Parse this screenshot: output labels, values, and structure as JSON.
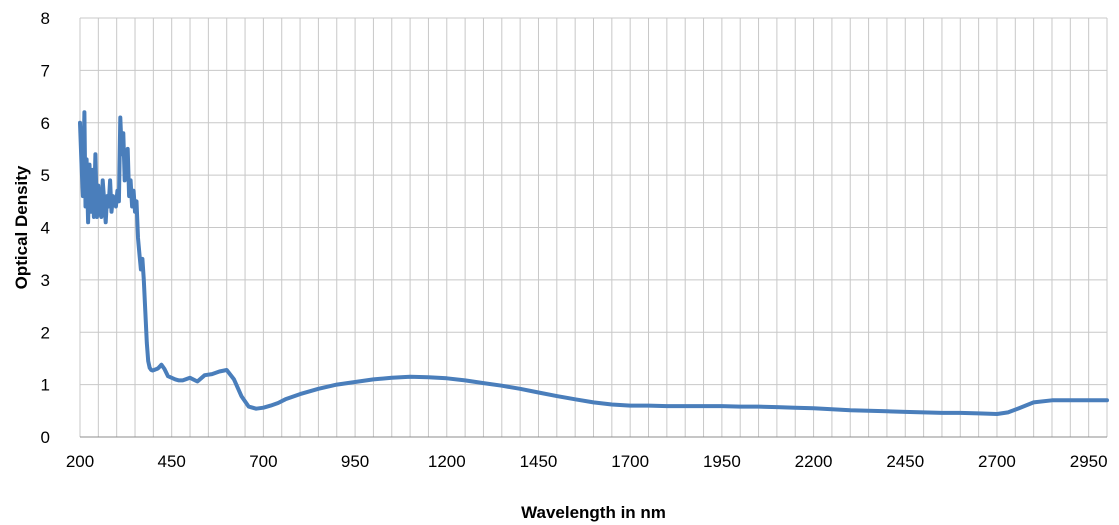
{
  "chart_data": {
    "type": "line",
    "title": "",
    "xlabel": "Wavelength in nm",
    "ylabel": "Optical Density",
    "xlim": [
      200,
      3000
    ],
    "ylim": [
      0,
      8
    ],
    "x_ticks": [
      200,
      450,
      700,
      950,
      1200,
      1450,
      1700,
      1950,
      2200,
      2450,
      2700,
      2950
    ],
    "y_ticks": [
      0,
      1,
      2,
      3,
      4,
      5,
      6,
      7,
      8
    ],
    "grid": true,
    "legend": "none",
    "series_color": "#4a7ebb",
    "series": [
      {
        "x": [
          200,
          204,
          208,
          212,
          215,
          218,
          222,
          226,
          230,
          234,
          238,
          242,
          246,
          250,
          254,
          258,
          262,
          266,
          270,
          274,
          278,
          282,
          286,
          290,
          294,
          298,
          302,
          306,
          310,
          314,
          318,
          322,
          326,
          330,
          334,
          338,
          342,
          346,
          350,
          354,
          358,
          362,
          366,
          370,
          374,
          378,
          382,
          386,
          390,
          394,
          398,
          402,
          406,
          410,
          414,
          418,
          422,
          430,
          440,
          450,
          460,
          470,
          480,
          500,
          520,
          540,
          560,
          580,
          600,
          620,
          640,
          660,
          680,
          700,
          720,
          740,
          760,
          800,
          850,
          900,
          950,
          1000,
          1050,
          1100,
          1150,
          1200,
          1250,
          1300,
          1350,
          1400,
          1450,
          1500,
          1550,
          1600,
          1650,
          1700,
          1750,
          1800,
          1850,
          1900,
          1950,
          2000,
          2050,
          2100,
          2150,
          2200,
          2250,
          2300,
          2350,
          2400,
          2450,
          2500,
          2550,
          2600,
          2650,
          2700,
          2730,
          2760,
          2800,
          2850,
          2900,
          2950,
          3000
        ],
        "values": [
          6.0,
          5.2,
          4.6,
          6.2,
          4.4,
          5.3,
          4.1,
          5.2,
          4.3,
          5.1,
          4.2,
          5.4,
          4.2,
          4.8,
          4.3,
          4.2,
          4.9,
          4.5,
          4.1,
          4.6,
          4.4,
          4.9,
          4.3,
          4.6,
          4.5,
          4.4,
          4.7,
          4.5,
          6.1,
          5.4,
          5.8,
          4.9,
          5.2,
          5.5,
          4.6,
          4.9,
          4.4,
          4.7,
          4.3,
          4.5,
          3.8,
          3.5,
          3.2,
          3.4,
          3.0,
          2.4,
          1.8,
          1.45,
          1.32,
          1.28,
          1.27,
          1.28,
          1.29,
          1.3,
          1.32,
          1.35,
          1.38,
          1.3,
          1.16,
          1.13,
          1.1,
          1.08,
          1.08,
          1.13,
          1.06,
          1.18,
          1.2,
          1.25,
          1.28,
          1.1,
          0.78,
          0.58,
          0.54,
          0.56,
          0.6,
          0.65,
          0.72,
          0.82,
          0.92,
          1.0,
          1.05,
          1.1,
          1.13,
          1.15,
          1.14,
          1.12,
          1.08,
          1.03,
          0.98,
          0.92,
          0.85,
          0.78,
          0.72,
          0.66,
          0.62,
          0.6,
          0.6,
          0.59,
          0.59,
          0.59,
          0.59,
          0.58,
          0.58,
          0.57,
          0.56,
          0.55,
          0.53,
          0.51,
          0.5,
          0.49,
          0.48,
          0.47,
          0.46,
          0.46,
          0.45,
          0.44,
          0.47,
          0.55,
          0.66,
          0.7,
          0.7,
          0.7,
          0.7
        ]
      }
    ]
  }
}
